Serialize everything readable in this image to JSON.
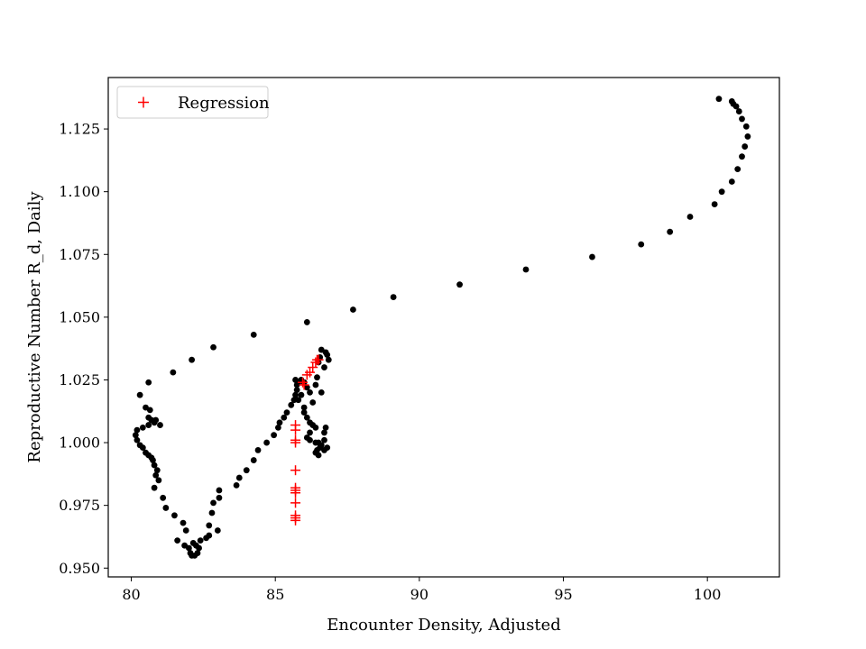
{
  "chart_data": {
    "type": "scatter",
    "title": "",
    "xlabel": "Encounter Density, Adjusted",
    "ylabel": "Reproductive Number R_d, Daily",
    "xlim": [
      79.2,
      102.5
    ],
    "ylim": [
      0.9465,
      1.1455
    ],
    "xticks": [
      80,
      85,
      90,
      95,
      100
    ],
    "xtick_labels": [
      "80",
      "85",
      "90",
      "95",
      "100"
    ],
    "yticks": [
      0.95,
      0.975,
      1.0,
      1.025,
      1.05,
      1.075,
      1.1,
      1.125
    ],
    "ytick_labels": [
      "0.950",
      "0.975",
      "1.000",
      "1.025",
      "1.050",
      "1.075",
      "1.100",
      "1.125"
    ],
    "grid": false,
    "legend": {
      "position": "top-left",
      "entries": [
        "Regression"
      ]
    },
    "series": [
      {
        "name": "",
        "marker": "circle",
        "color": "#000000",
        "points": [
          [
            100.4,
            1.137
          ],
          [
            100.85,
            1.136
          ],
          [
            100.9,
            1.135
          ],
          [
            101.0,
            1.134
          ],
          [
            101.1,
            1.132
          ],
          [
            101.2,
            1.129
          ],
          [
            101.35,
            1.126
          ],
          [
            101.4,
            1.122
          ],
          [
            101.3,
            1.118
          ],
          [
            101.2,
            1.114
          ],
          [
            101.05,
            1.109
          ],
          [
            100.85,
            1.104
          ],
          [
            100.5,
            1.1
          ],
          [
            100.25,
            1.095
          ],
          [
            99.4,
            1.09
          ],
          [
            98.7,
            1.084
          ],
          [
            97.7,
            1.079
          ],
          [
            96.0,
            1.074
          ],
          [
            93.7,
            1.069
          ],
          [
            91.4,
            1.063
          ],
          [
            89.1,
            1.058
          ],
          [
            87.7,
            1.053
          ],
          [
            86.1,
            1.048
          ],
          [
            84.25,
            1.043
          ],
          [
            82.85,
            1.038
          ],
          [
            82.1,
            1.033
          ],
          [
            81.45,
            1.028
          ],
          [
            80.6,
            1.024
          ],
          [
            80.3,
            1.019
          ],
          [
            80.5,
            1.014
          ],
          [
            80.65,
            1.013
          ],
          [
            80.6,
            1.01
          ],
          [
            80.7,
            1.009
          ],
          [
            80.8,
            1.008
          ],
          [
            80.85,
            1.009
          ],
          [
            81.0,
            1.007
          ],
          [
            80.6,
            1.007
          ],
          [
            80.4,
            1.006
          ],
          [
            80.2,
            1.005
          ],
          [
            80.15,
            1.003
          ],
          [
            80.2,
            1.001
          ],
          [
            80.3,
            0.999
          ],
          [
            80.4,
            0.998
          ],
          [
            80.5,
            0.996
          ],
          [
            80.6,
            0.995
          ],
          [
            80.7,
            0.994
          ],
          [
            80.75,
            0.993
          ],
          [
            80.8,
            0.991
          ],
          [
            80.9,
            0.989
          ],
          [
            80.85,
            0.987
          ],
          [
            80.95,
            0.985
          ],
          [
            80.8,
            0.982
          ],
          [
            81.1,
            0.978
          ],
          [
            81.2,
            0.974
          ],
          [
            81.5,
            0.971
          ],
          [
            81.8,
            0.968
          ],
          [
            81.9,
            0.965
          ],
          [
            81.6,
            0.961
          ],
          [
            81.85,
            0.959
          ],
          [
            82.0,
            0.958
          ],
          [
            82.05,
            0.956
          ],
          [
            82.1,
            0.955
          ],
          [
            82.2,
            0.955
          ],
          [
            82.3,
            0.956
          ],
          [
            82.35,
            0.958
          ],
          [
            82.25,
            0.959
          ],
          [
            82.15,
            0.96
          ],
          [
            82.4,
            0.961
          ],
          [
            82.6,
            0.962
          ],
          [
            82.7,
            0.963
          ],
          [
            82.7,
            0.967
          ],
          [
            83.0,
            0.965
          ],
          [
            82.8,
            0.972
          ],
          [
            82.85,
            0.976
          ],
          [
            83.05,
            0.978
          ],
          [
            83.05,
            0.981
          ],
          [
            83.65,
            0.983
          ],
          [
            83.75,
            0.986
          ],
          [
            84.0,
            0.989
          ],
          [
            84.25,
            0.993
          ],
          [
            84.4,
            0.997
          ],
          [
            84.7,
            1.0
          ],
          [
            84.95,
            1.003
          ],
          [
            85.1,
            1.006
          ],
          [
            85.15,
            1.008
          ],
          [
            85.3,
            1.01
          ],
          [
            85.4,
            1.012
          ],
          [
            85.55,
            1.015
          ],
          [
            85.65,
            1.017
          ],
          [
            85.7,
            1.019
          ],
          [
            85.75,
            1.021
          ],
          [
            85.75,
            1.023
          ],
          [
            85.8,
            1.024
          ],
          [
            85.7,
            1.025
          ],
          [
            85.9,
            1.025
          ],
          [
            86.0,
            1.024
          ],
          [
            86.1,
            1.022
          ],
          [
            86.2,
            1.02
          ],
          [
            85.9,
            1.019
          ],
          [
            85.8,
            1.017
          ],
          [
            86.3,
            1.016
          ],
          [
            86.0,
            1.014
          ],
          [
            86.0,
            1.012
          ],
          [
            86.1,
            1.01
          ],
          [
            86.2,
            1.008
          ],
          [
            86.3,
            1.007
          ],
          [
            86.4,
            1.006
          ],
          [
            86.2,
            1.004
          ],
          [
            86.1,
            1.002
          ],
          [
            86.2,
            1.001
          ],
          [
            86.4,
            1.0
          ],
          [
            86.5,
            1.0
          ],
          [
            86.6,
            0.999
          ],
          [
            86.55,
            0.998
          ],
          [
            86.45,
            0.997
          ],
          [
            86.4,
            0.996
          ],
          [
            86.5,
            0.995
          ],
          [
            86.7,
            0.997
          ],
          [
            86.8,
            0.998
          ],
          [
            86.7,
            1.001
          ],
          [
            86.7,
            1.004
          ],
          [
            86.75,
            1.006
          ],
          [
            86.6,
            1.02
          ],
          [
            86.4,
            1.023
          ],
          [
            86.45,
            1.026
          ],
          [
            86.7,
            1.03
          ],
          [
            86.85,
            1.033
          ],
          [
            86.8,
            1.035
          ],
          [
            86.75,
            1.036
          ],
          [
            86.6,
            1.037
          ],
          [
            86.55,
            1.034
          ],
          [
            86.5,
            1.032
          ],
          [
            86.0,
            1.024
          ]
        ]
      },
      {
        "name": "Regression",
        "marker": "plus",
        "color": "#ff0000",
        "points": [
          [
            86.5,
            1.033
          ],
          [
            86.4,
            1.032
          ],
          [
            86.45,
            1.033
          ],
          [
            86.3,
            1.03
          ],
          [
            86.2,
            1.028
          ],
          [
            86.1,
            1.027
          ],
          [
            85.95,
            1.024
          ],
          [
            86.0,
            1.023
          ],
          [
            85.7,
            1.007
          ],
          [
            85.7,
            1.005
          ],
          [
            85.7,
            1.001
          ],
          [
            85.7,
            1.0
          ],
          [
            85.7,
            0.989
          ],
          [
            85.7,
            0.982
          ],
          [
            85.7,
            0.981
          ],
          [
            85.7,
            0.98
          ],
          [
            85.7,
            0.976
          ],
          [
            85.7,
            0.971
          ],
          [
            85.7,
            0.97
          ],
          [
            85.7,
            0.969
          ]
        ]
      }
    ]
  }
}
